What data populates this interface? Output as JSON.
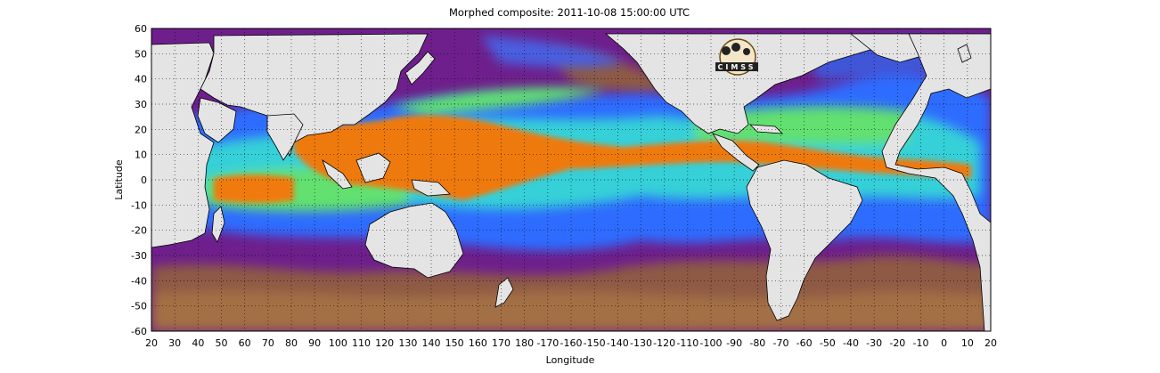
{
  "figure": {
    "title": "Morphed composite: 2011-10-08 15:00:00 UTC",
    "xlabel": "Longitude",
    "ylabel": "Latitude",
    "logo_text": "CIMSS"
  },
  "axes": {
    "x_ticks": [
      "20",
      "30",
      "40",
      "50",
      "60",
      "70",
      "80",
      "90",
      "100",
      "110",
      "120",
      "130",
      "140",
      "150",
      "160",
      "170",
      "180",
      "-170",
      "-160",
      "-150",
      "-140",
      "-130",
      "-120",
      "-110",
      "-100",
      "-90",
      "-80",
      "-70",
      "-60",
      "-50",
      "-40",
      "-30",
      "-20",
      "-10",
      "0",
      "10",
      "20"
    ],
    "y_ticks": [
      "60",
      "50",
      "40",
      "30",
      "20",
      "10",
      "0",
      "-10",
      "-20",
      "-30",
      "-40",
      "-50",
      "-60"
    ],
    "grid": "dotted"
  },
  "colors": {
    "land": "#e4e4e4",
    "dry_ocean": "#6e1f8c",
    "very_dry": "#9a6a45",
    "moist": "#2f6cff",
    "wet_mid": "#46e070",
    "very_wet": "#f07a10"
  }
}
